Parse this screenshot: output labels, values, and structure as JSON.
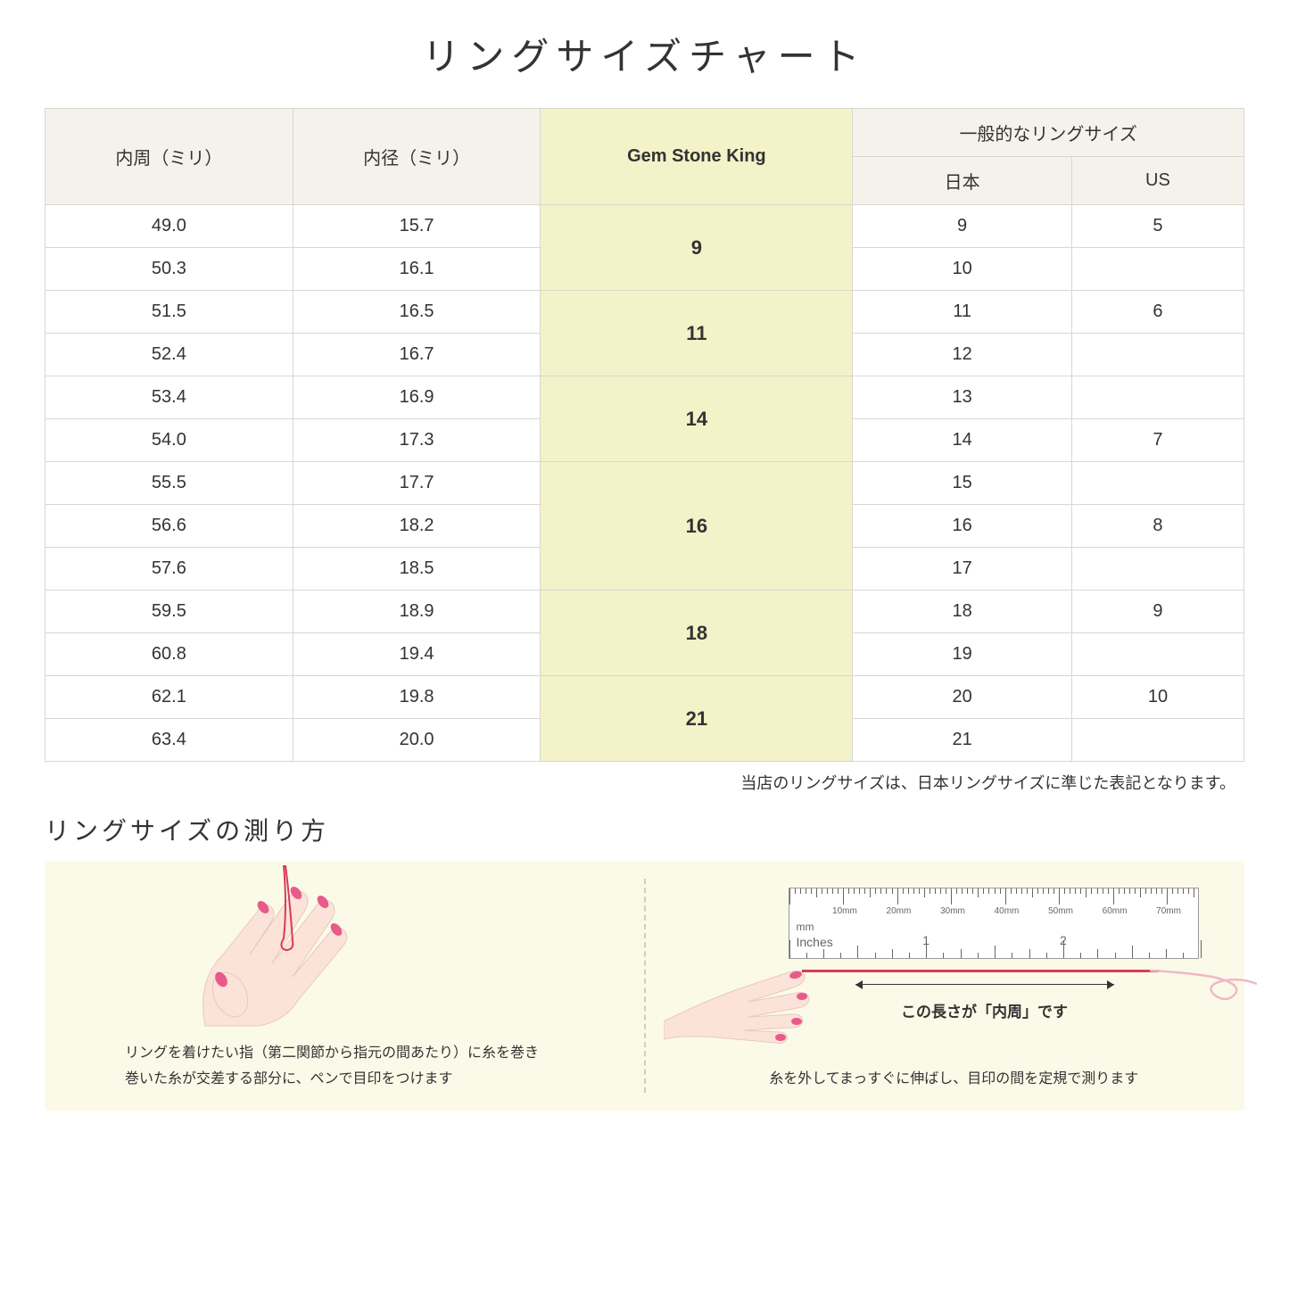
{
  "title": "リングサイズチャート",
  "headers": {
    "circumference": "内周（ミリ）",
    "diameter": "内径（ミリ）",
    "gsk": "Gem Stone King",
    "general": "一般的なリングサイズ",
    "japan": "日本",
    "us": "US"
  },
  "colors": {
    "header_bg": "#f4f2ea",
    "highlight_bg": "#f3f2c8",
    "border": "#d8d8d0",
    "panel_bg": "#fbfae8",
    "thread": "#d93a5a",
    "skin": "#fbe3d9",
    "nail": "#e85a8a"
  },
  "groups": [
    {
      "gsk": "9",
      "rows": [
        {
          "c": "49.0",
          "d": "15.7",
          "jp": "9",
          "us": "5"
        },
        {
          "c": "50.3",
          "d": "16.1",
          "jp": "10",
          "us": ""
        }
      ]
    },
    {
      "gsk": "11",
      "rows": [
        {
          "c": "51.5",
          "d": "16.5",
          "jp": "11",
          "us": "6"
        },
        {
          "c": "52.4",
          "d": "16.7",
          "jp": "12",
          "us": ""
        }
      ]
    },
    {
      "gsk": "14",
      "rows": [
        {
          "c": "53.4",
          "d": "16.9",
          "jp": "13",
          "us": ""
        },
        {
          "c": "54.0",
          "d": "17.3",
          "jp": "14",
          "us": "7"
        }
      ]
    },
    {
      "gsk": "16",
      "rows": [
        {
          "c": "55.5",
          "d": "17.7",
          "jp": "15",
          "us": ""
        },
        {
          "c": "56.6",
          "d": "18.2",
          "jp": "16",
          "us": "8"
        },
        {
          "c": "57.6",
          "d": "18.5",
          "jp": "17",
          "us": ""
        }
      ]
    },
    {
      "gsk": "18",
      "rows": [
        {
          "c": "59.5",
          "d": "18.9",
          "jp": "18",
          "us": "9"
        },
        {
          "c": "60.8",
          "d": "19.4",
          "jp": "19",
          "us": ""
        }
      ]
    },
    {
      "gsk": "21",
      "rows": [
        {
          "c": "62.1",
          "d": "19.8",
          "jp": "20",
          "us": "10"
        },
        {
          "c": "63.4",
          "d": "20.0",
          "jp": "21",
          "us": ""
        }
      ]
    }
  ],
  "note": "当店のリングサイズは、日本リングサイズに準じた表記となります。",
  "howto": {
    "title": "リングサイズの測り方",
    "left_caption": "リングを着けたい指（第二関節から指元の間あたり）に糸を巻き\n巻いた糸が交差する部分に、ペンで目印をつけます",
    "right_caption": "糸を外してまっすぐに伸ばし、目印の間を定規で測ります",
    "measure_label": "この長さが「内周」です",
    "ruler": {
      "mm_unit": "mm",
      "inches_unit": "Inches",
      "mm_labels": [
        "10mm",
        "20mm",
        "30mm",
        "40mm",
        "50mm",
        "60mm",
        "70mm"
      ],
      "inch_labels": [
        "1",
        "2"
      ]
    }
  }
}
